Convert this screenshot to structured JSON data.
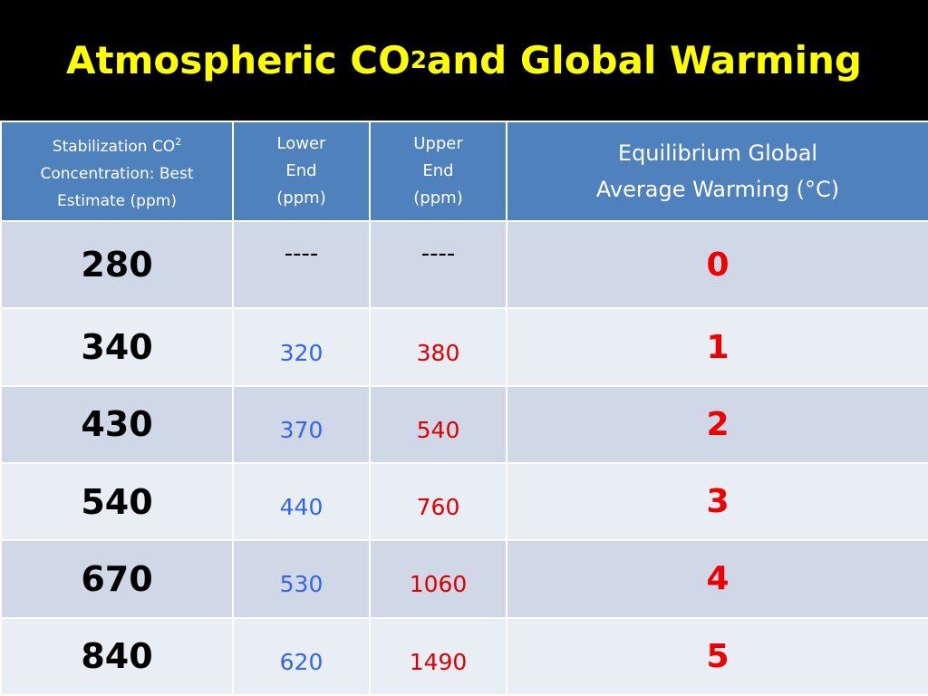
{
  "title": [
    "Atmospheric CO",
    "2",
    " and Global Warming"
  ],
  "table": {
    "headers": [
      [
        "Stabilization CO",
        "2",
        " Concentration: Best Estimate (ppm)"
      ],
      [
        "Lower End (ppm)"
      ],
      [
        "Upper End (ppm)"
      ],
      [
        "Equilibrium Global Average Warming (°C)"
      ]
    ],
    "rows": [
      [
        280,
        "----",
        "----",
        0
      ],
      [
        340,
        320,
        380,
        1
      ],
      [
        430,
        370,
        540,
        2
      ],
      [
        540,
        440,
        760,
        3
      ],
      [
        670,
        530,
        1060,
        4
      ],
      [
        840,
        620,
        1490,
        5
      ]
    ]
  }
}
